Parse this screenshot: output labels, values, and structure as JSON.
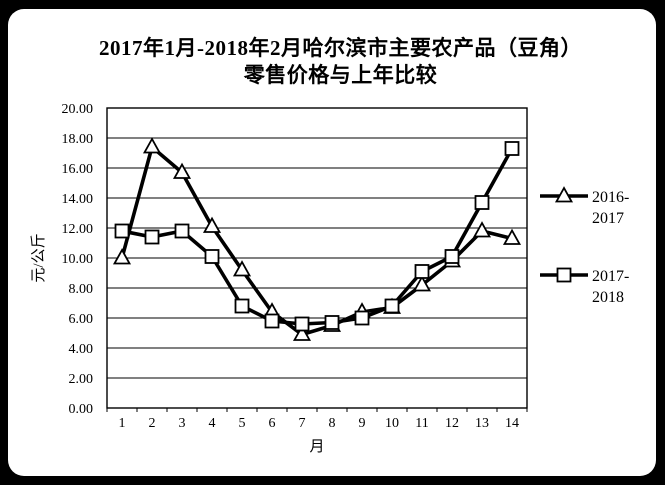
{
  "frame": {
    "bg_color": "#000000",
    "panel_color": "#ffffff"
  },
  "title": {
    "line1": "2017年1月-2018年2月哈尔滨市主要农产品（豆角）",
    "line2": "零售价格与上年比较"
  },
  "chart_data": {
    "type": "line",
    "title": "2017年1月-2018年2月哈尔滨市主要农产品（豆角）零售价格与上年比较",
    "xlabel": "月",
    "ylabel": "元/公斤",
    "x": [
      1,
      2,
      3,
      4,
      5,
      6,
      7,
      8,
      9,
      10,
      11,
      12,
      13,
      14
    ],
    "series": [
      {
        "name": "2016-2017",
        "marker": "triangle",
        "color": "#000000",
        "values": [
          10.0,
          17.4,
          15.7,
          12.1,
          9.2,
          6.4,
          4.9,
          5.5,
          6.4,
          6.7,
          8.2,
          9.8,
          11.8,
          11.3
        ]
      },
      {
        "name": "2017-2018",
        "marker": "square",
        "color": "#000000",
        "values": [
          11.8,
          11.4,
          11.8,
          10.1,
          6.8,
          5.8,
          5.6,
          5.7,
          6.0,
          6.8,
          9.1,
          10.1,
          13.7,
          17.3
        ]
      }
    ],
    "ylim": [
      0,
      20
    ],
    "ytick_step": 2,
    "ytick_decimals": 2,
    "grid": "horizontal",
    "plot_border": true,
    "legend_position": "right",
    "legend": [
      {
        "name": "2016-2017",
        "lines": [
          "2016-",
          "2017"
        ],
        "marker": "triangle"
      },
      {
        "name": "2017-2018",
        "lines": [
          "2017-",
          "2018"
        ],
        "marker": "square"
      }
    ]
  }
}
